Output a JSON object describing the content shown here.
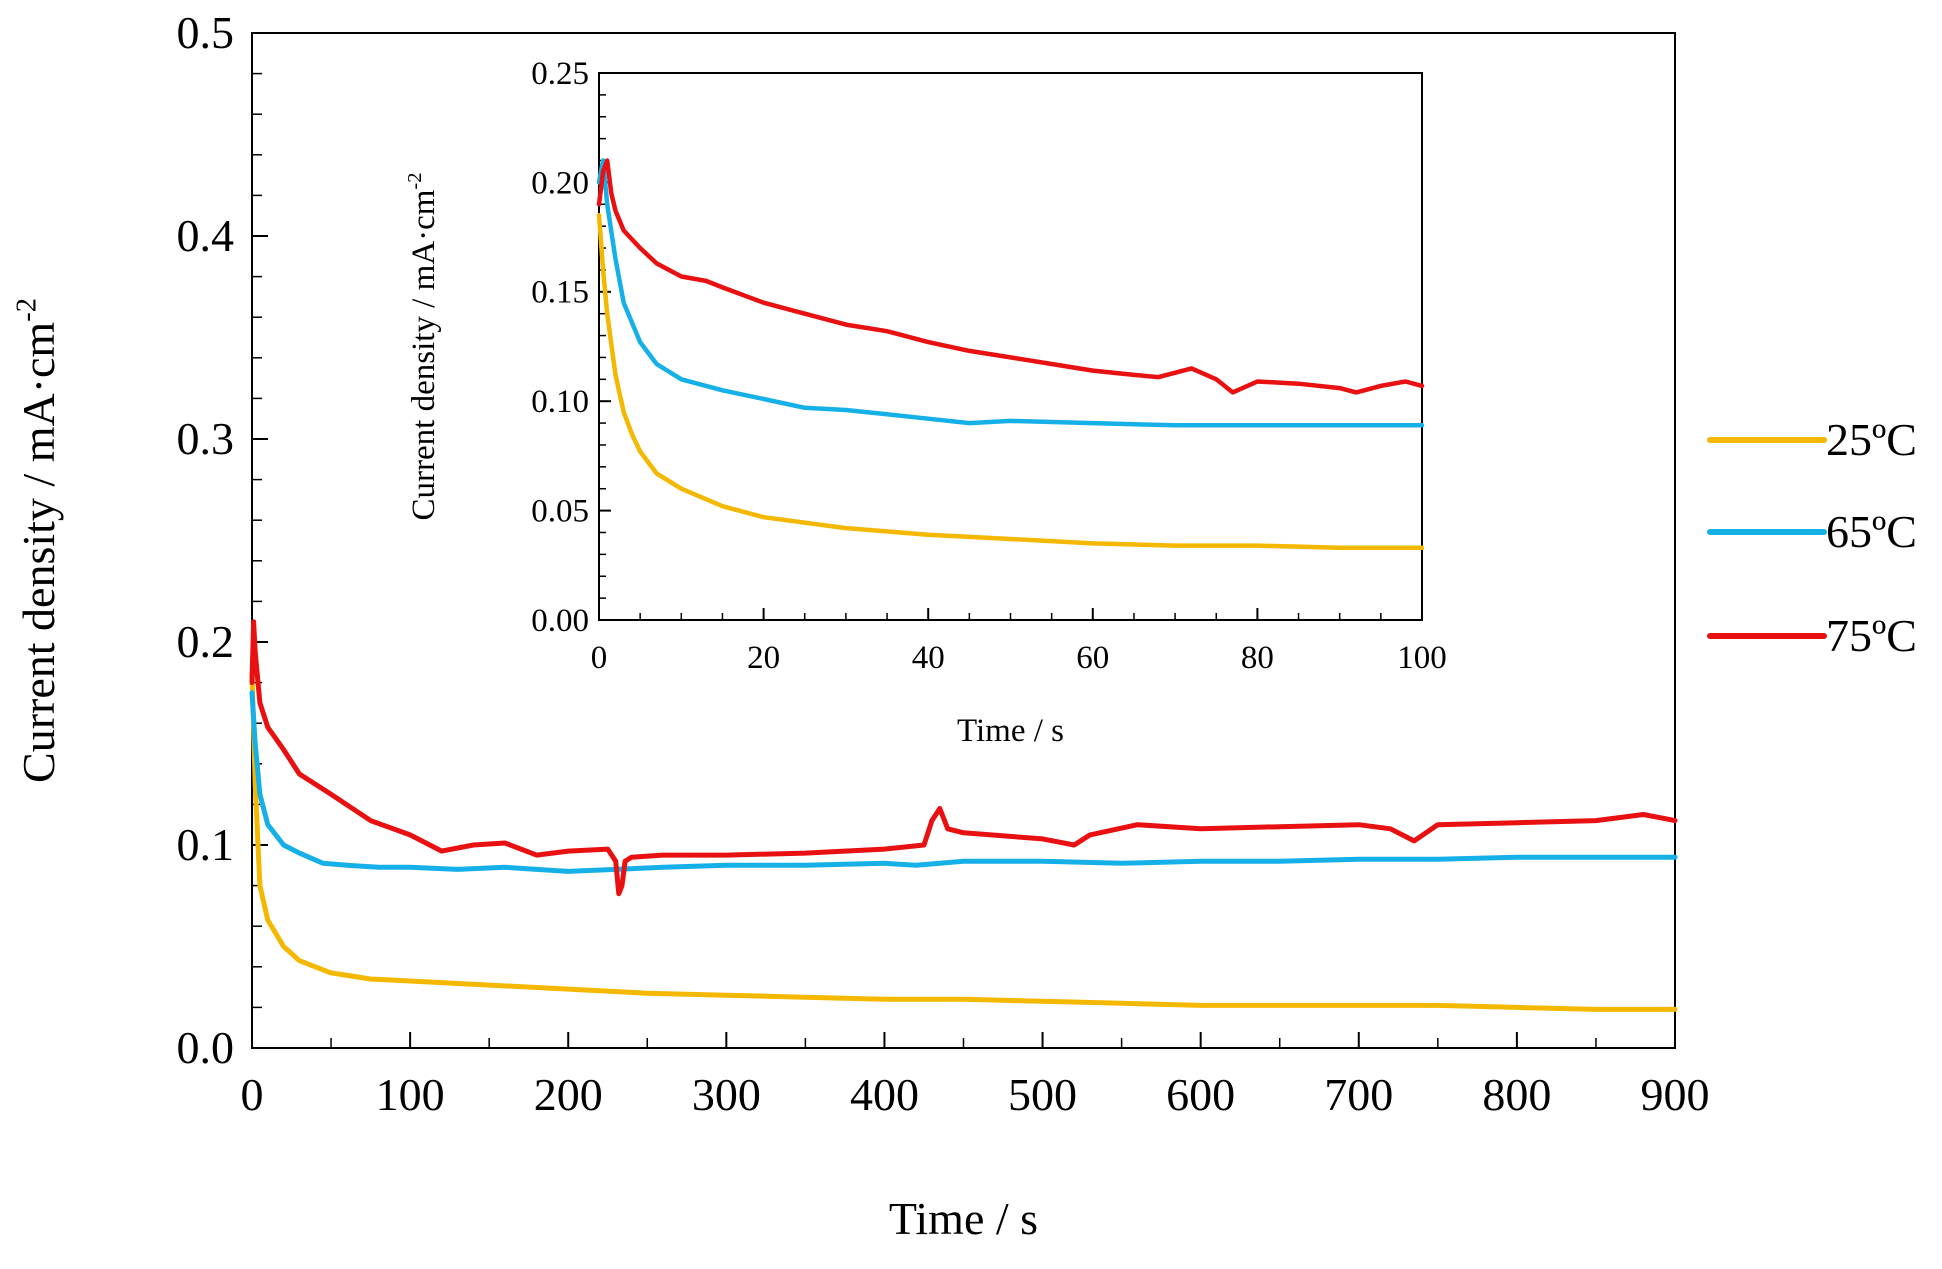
{
  "chart_data": [
    {
      "id": "main",
      "type": "line",
      "title": "",
      "xlabel": "Time / s",
      "ylabel": "Current density / mA·cm",
      "ylabel_sup": "-2",
      "xlim": [
        0,
        900
      ],
      "ylim": [
        0.0,
        0.5
      ],
      "x_ticks": [
        "0",
        "100",
        "200",
        "300",
        "400",
        "500",
        "600",
        "700",
        "800",
        "900"
      ],
      "y_ticks": [
        "0.0",
        "0.1",
        "0.2",
        "0.3",
        "0.4",
        "0.5"
      ],
      "grid": false,
      "legend_position": "right",
      "series": [
        {
          "name": "25ºC",
          "color": "#F5B800",
          "x": [
            0,
            2,
            5,
            10,
            20,
            30,
            50,
            75,
            100,
            150,
            200,
            250,
            300,
            350,
            400,
            450,
            500,
            550,
            600,
            650,
            700,
            750,
            800,
            850,
            900
          ],
          "y": [
            0.185,
            0.13,
            0.08,
            0.063,
            0.05,
            0.043,
            0.037,
            0.034,
            0.033,
            0.031,
            0.029,
            0.027,
            0.026,
            0.025,
            0.024,
            0.024,
            0.023,
            0.022,
            0.021,
            0.021,
            0.021,
            0.021,
            0.02,
            0.019,
            0.019
          ]
        },
        {
          "name": "65ºC",
          "color": "#16B0E8",
          "x": [
            0,
            2,
            5,
            10,
            20,
            30,
            45,
            60,
            80,
            100,
            130,
            160,
            180,
            200,
            230,
            260,
            300,
            350,
            400,
            420,
            450,
            500,
            550,
            600,
            650,
            700,
            750,
            800,
            850,
            900
          ],
          "y": [
            0.175,
            0.15,
            0.125,
            0.11,
            0.1,
            0.096,
            0.091,
            0.09,
            0.089,
            0.089,
            0.088,
            0.089,
            0.088,
            0.087,
            0.088,
            0.089,
            0.09,
            0.09,
            0.091,
            0.09,
            0.092,
            0.092,
            0.091,
            0.092,
            0.092,
            0.093,
            0.093,
            0.094,
            0.094,
            0.094
          ]
        },
        {
          "name": "75ºC",
          "color": "#E81010",
          "x": [
            0,
            1,
            2,
            5,
            10,
            20,
            30,
            50,
            75,
            100,
            120,
            140,
            160,
            180,
            200,
            225,
            230,
            232,
            234,
            236,
            240,
            260,
            300,
            350,
            400,
            425,
            430,
            435,
            440,
            450,
            500,
            520,
            530,
            560,
            600,
            650,
            700,
            720,
            735,
            750,
            800,
            850,
            880,
            900
          ],
          "y": [
            0.18,
            0.21,
            0.195,
            0.17,
            0.158,
            0.147,
            0.135,
            0.125,
            0.112,
            0.105,
            0.097,
            0.1,
            0.101,
            0.095,
            0.097,
            0.098,
            0.092,
            0.076,
            0.08,
            0.092,
            0.094,
            0.095,
            0.095,
            0.096,
            0.098,
            0.1,
            0.112,
            0.118,
            0.108,
            0.106,
            0.103,
            0.1,
            0.105,
            0.11,
            0.108,
            0.109,
            0.11,
            0.108,
            0.102,
            0.11,
            0.111,
            0.112,
            0.115,
            0.112
          ]
        }
      ]
    },
    {
      "id": "inset",
      "type": "line",
      "title": "",
      "xlabel": "Time / s",
      "ylabel": "Current density / mA·cm",
      "ylabel_sup": "-2",
      "xlim": [
        0,
        100
      ],
      "ylim": [
        0.0,
        0.25
      ],
      "x_ticks": [
        "0",
        "20",
        "40",
        "60",
        "80",
        "100"
      ],
      "y_ticks": [
        "0.00",
        "0.05",
        "0.10",
        "0.15",
        "0.20",
        "0.25"
      ],
      "grid": false,
      "series": [
        {
          "name": "25ºC",
          "color": "#F5B800",
          "x": [
            0,
            0.5,
            1,
            2,
            3,
            4,
            5,
            7,
            10,
            15,
            20,
            30,
            40,
            50,
            60,
            70,
            80,
            90,
            100
          ],
          "y": [
            0.185,
            0.16,
            0.14,
            0.112,
            0.095,
            0.085,
            0.077,
            0.067,
            0.06,
            0.052,
            0.047,
            0.042,
            0.039,
            0.037,
            0.035,
            0.034,
            0.034,
            0.033,
            0.033
          ]
        },
        {
          "name": "65ºC",
          "color": "#16B0E8",
          "x": [
            0,
            0.5,
            1,
            2,
            3,
            5,
            7,
            10,
            15,
            20,
            25,
            30,
            35,
            40,
            45,
            50,
            60,
            70,
            80,
            90,
            100
          ],
          "y": [
            0.2,
            0.21,
            0.19,
            0.165,
            0.145,
            0.127,
            0.117,
            0.11,
            0.105,
            0.101,
            0.097,
            0.096,
            0.094,
            0.092,
            0.09,
            0.091,
            0.09,
            0.089,
            0.089,
            0.089,
            0.089
          ]
        },
        {
          "name": "75ºC",
          "color": "#E81010",
          "x": [
            0,
            0.5,
            1,
            1.5,
            2,
            3,
            5,
            7,
            10,
            13,
            15,
            20,
            25,
            30,
            35,
            40,
            45,
            50,
            55,
            60,
            65,
            68,
            72,
            75,
            77,
            80,
            85,
            90,
            92,
            95,
            98,
            100
          ],
          "y": [
            0.19,
            0.205,
            0.21,
            0.195,
            0.187,
            0.178,
            0.17,
            0.163,
            0.157,
            0.155,
            0.152,
            0.145,
            0.14,
            0.135,
            0.132,
            0.127,
            0.123,
            0.12,
            0.117,
            0.114,
            0.112,
            0.111,
            0.115,
            0.11,
            0.104,
            0.109,
            0.108,
            0.106,
            0.104,
            0.107,
            0.109,
            0.107
          ]
        }
      ]
    }
  ]
}
